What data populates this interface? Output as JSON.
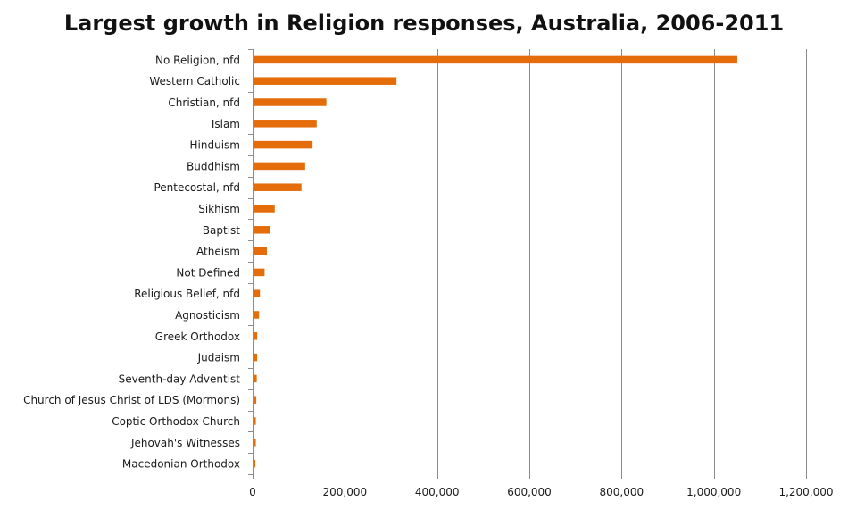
{
  "chart_data": {
    "type": "bar",
    "orientation": "horizontal",
    "title": "Largest growth in Religion responses, Australia, 2006-2011",
    "xlabel": "",
    "ylabel": "",
    "categories": [
      "No Religion, nfd",
      "Western Catholic",
      "Christian, nfd",
      "Islam",
      "Hinduism",
      "Buddhism",
      "Pentecostal, nfd",
      "Sikhism",
      "Baptist",
      "Atheism",
      "Not Defined",
      "Religious Belief, nfd",
      "Agnosticism",
      "Greek Orthodox",
      "Judaism",
      "Seventh-day Adventist",
      "Church of Jesus Christ of LDS (Mormons)",
      "Coptic Orthodox Church",
      "Jehovah's Witnesses",
      "Macedonian Orthodox"
    ],
    "values": [
      1049000,
      310000,
      158000,
      137000,
      128000,
      112000,
      104000,
      46000,
      35000,
      29000,
      24000,
      14000,
      12000,
      8000,
      8000,
      7000,
      6000,
      5000,
      5000,
      4000
    ],
    "xlim": [
      0,
      1200000
    ],
    "x_ticks": [
      0,
      200000,
      400000,
      600000,
      800000,
      1000000,
      1200000
    ],
    "x_tick_labels": [
      "0",
      "200,000",
      "400,000",
      "600,000",
      "800,000",
      "1,000,000",
      "1,200,000"
    ],
    "grid": "vertical",
    "legend": "none",
    "colors": {
      "bar": "#E46C0A",
      "grid": "#8c8c8c",
      "axis": "#8c8c8c"
    }
  }
}
